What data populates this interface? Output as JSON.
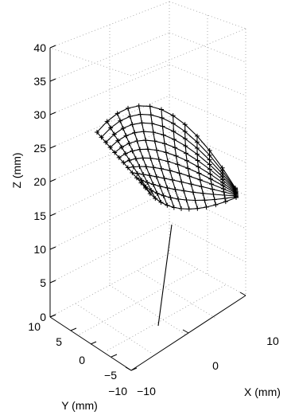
{
  "chart_data": {
    "type": "surface3d",
    "title": "",
    "xlabel": "X (mm)",
    "ylabel": "Y (mm)",
    "zlabel": "Z (mm)",
    "xlim": [
      -10,
      10
    ],
    "ylim": [
      -10,
      10
    ],
    "zlim": [
      0,
      40
    ],
    "x_ticks": [
      "−10",
      "0",
      "10"
    ],
    "y_ticks": [
      "−10",
      "−5",
      "0",
      "5",
      "10"
    ],
    "z_ticks": [
      "0",
      "5",
      "10",
      "15",
      "20",
      "25",
      "30",
      "35",
      "40"
    ],
    "grid": true,
    "surface": {
      "description_grid": "approx. 10 x 12 mesh of measured points marked with + glyphs",
      "top_edge": [
        [
          -4,
          2,
          34
        ],
        [
          -1,
          4,
          37
        ],
        [
          2,
          5,
          38
        ],
        [
          5,
          5,
          36
        ],
        [
          8,
          4,
          30
        ],
        [
          10,
          2,
          22
        ]
      ],
      "bottom_edge": [
        [
          -6,
          -2,
          23
        ],
        [
          -3,
          -2,
          19
        ],
        [
          0,
          -2,
          17
        ],
        [
          3,
          -1,
          17
        ],
        [
          6,
          0,
          18
        ],
        [
          9,
          1,
          20
        ]
      ],
      "stem": {
        "from": [
          0,
          0,
          17
        ],
        "to": [
          -2,
          -2,
          1
        ]
      }
    },
    "colors": {
      "mesh": "#000000",
      "grid": "#9a9a9a",
      "axes": "#000000"
    }
  }
}
